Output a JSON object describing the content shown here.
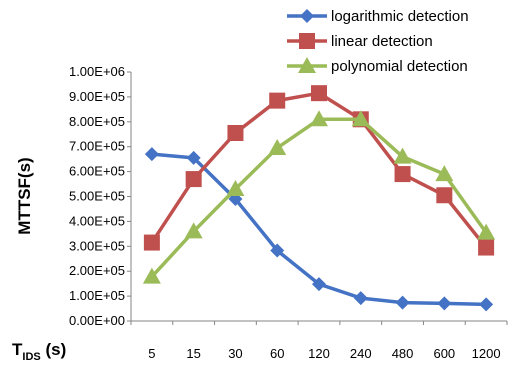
{
  "chart_data": {
    "type": "line",
    "ylabel": "MTTSF(s)",
    "xlabel": {
      "main": "T",
      "sub": "IDS",
      "suffix": " (s)"
    },
    "categories": [
      "5",
      "15",
      "30",
      "60",
      "120",
      "240",
      "480",
      "600",
      "1200"
    ],
    "y_ticks": [
      "0.00E+00",
      "1.00E+05",
      "2.00E+05",
      "3.00E+05",
      "4.00E+05",
      "5.00E+05",
      "6.00E+05",
      "7.00E+05",
      "8.00E+05",
      "9.00E+05",
      "1.00E+06"
    ],
    "ylim": [
      0,
      1000000
    ],
    "grid": false,
    "legend_position": "top-right",
    "series": [
      {
        "name": "logarithmic detection",
        "color": "#4472C4",
        "marker": "diamond",
        "values": [
          670000,
          655000,
          490000,
          283000,
          148000,
          92000,
          74000,
          71000,
          67000
        ]
      },
      {
        "name": "linear detection",
        "color": "#C0504D",
        "marker": "square",
        "values": [
          315000,
          570000,
          755000,
          885000,
          915000,
          810000,
          590000,
          505000,
          295000
        ]
      },
      {
        "name": "polynomial detection",
        "color": "#9BBB59",
        "marker": "triangle",
        "values": [
          178000,
          360000,
          530000,
          695000,
          810000,
          810000,
          660000,
          590000,
          355000
        ]
      }
    ]
  }
}
